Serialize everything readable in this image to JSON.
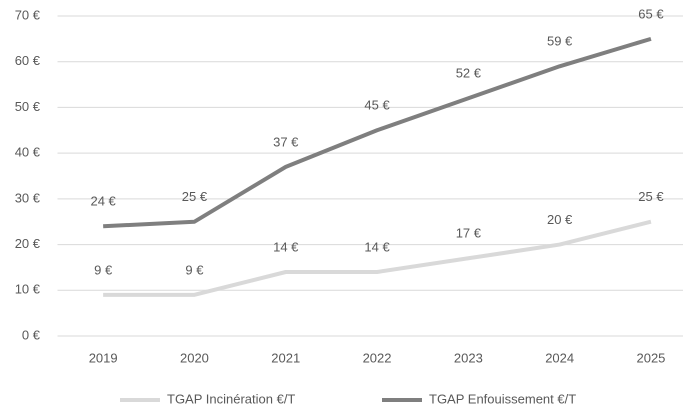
{
  "chart_data": {
    "type": "line",
    "categories": [
      "2019",
      "2020",
      "2021",
      "2022",
      "2023",
      "2024",
      "2025"
    ],
    "series": [
      {
        "name": "TGAP Incinération €/T",
        "color": "#d9d9d9",
        "values": [
          9,
          9,
          14,
          14,
          17,
          20,
          25
        ],
        "value_labels": [
          "9 €",
          "9 €",
          "14 €",
          "14 €",
          "17 €",
          "20 €",
          "25 €"
        ]
      },
      {
        "name": "TGAP Enfouissement €/T",
        "color": "#7f7f7f",
        "values": [
          24,
          25,
          37,
          45,
          52,
          59,
          65
        ],
        "value_labels": [
          "24 €",
          "25 €",
          "37 €",
          "45 €",
          "52 €",
          "59 €",
          "65 €"
        ]
      }
    ],
    "ylim": [
      0,
      70
    ],
    "yticks": [
      {
        "value": 0,
        "label": "0 €"
      },
      {
        "value": 10,
        "label": "10 €"
      },
      {
        "value": 20,
        "label": "20 €"
      },
      {
        "value": 30,
        "label": "30 €"
      },
      {
        "value": 40,
        "label": "40 €"
      },
      {
        "value": 50,
        "label": "50 €"
      },
      {
        "value": 60,
        "label": "60 €"
      },
      {
        "value": 70,
        "label": "70 €"
      }
    ],
    "grid": true,
    "legend": "bottom"
  }
}
